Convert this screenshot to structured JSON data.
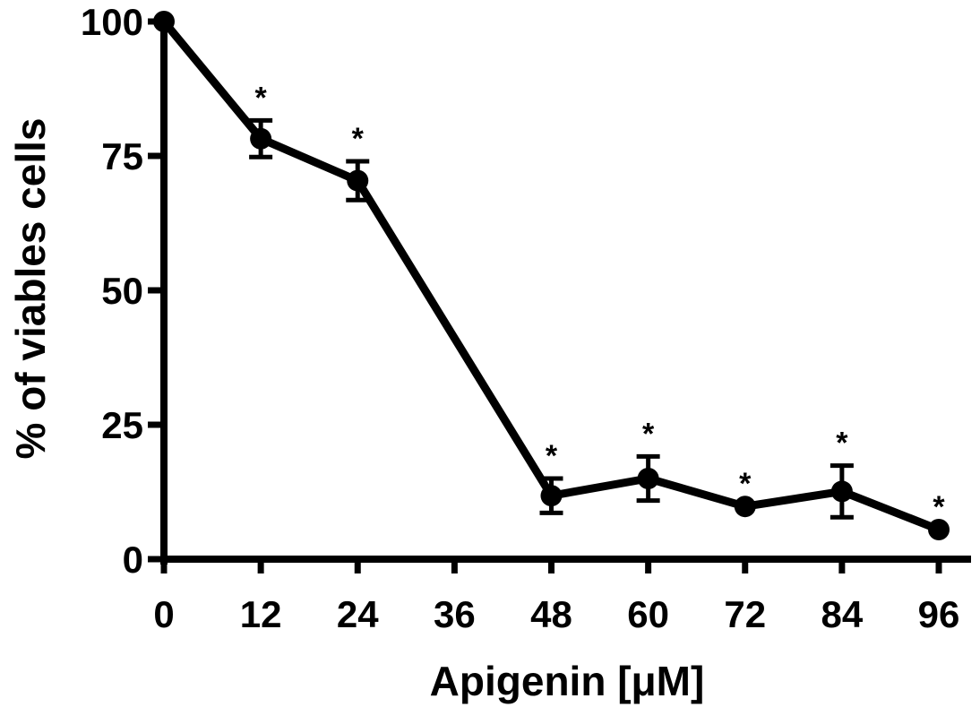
{
  "chart_data": {
    "type": "line",
    "title": "",
    "xlabel": "Apigenin [μM]",
    "ylabel": "% of viables cells",
    "xlim": [
      0,
      96
    ],
    "ylim": [
      0,
      100
    ],
    "xticks": [
      "0",
      "12",
      "24",
      "36",
      "48",
      "60",
      "72",
      "84",
      "96"
    ],
    "yticks": [
      "0",
      "25",
      "50",
      "75",
      "100"
    ],
    "grid": false,
    "legend": "none",
    "color": "#000000",
    "series": [
      {
        "x": [
          0,
          12,
          24,
          48,
          60,
          72,
          84,
          96
        ],
        "y": [
          100,
          78.2,
          70.4,
          11.8,
          15,
          9.8,
          12.6,
          5.5
        ],
        "error": [
          0,
          3.4,
          3.6,
          3.2,
          4.1,
          0,
          4.8,
          0
        ],
        "significance": [
          "",
          "*",
          "*",
          "*",
          "*",
          "*",
          "*",
          "*"
        ]
      }
    ]
  }
}
